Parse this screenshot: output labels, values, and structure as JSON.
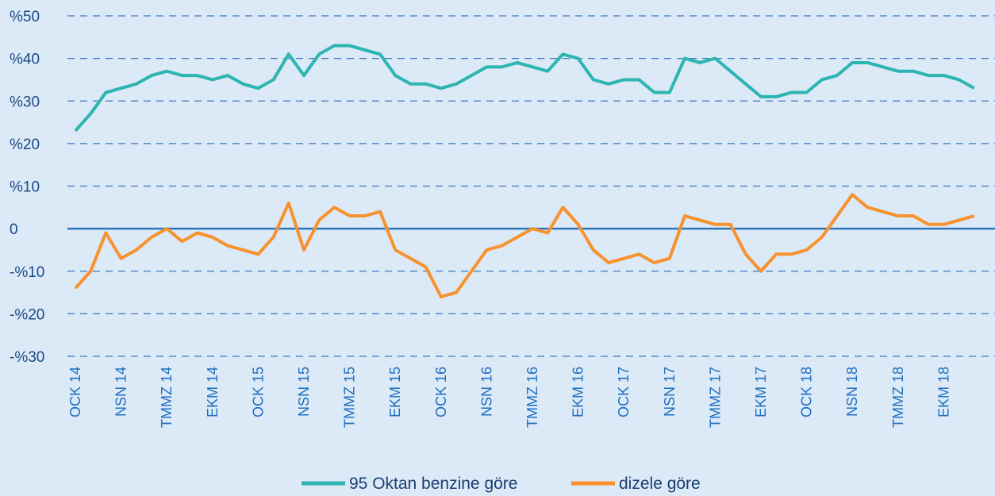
{
  "chart_data": {
    "type": "line",
    "categories": [
      "OCK 14",
      null,
      null,
      "NSN 14",
      null,
      null,
      "TMMZ 14",
      null,
      null,
      "EKM 14",
      null,
      null,
      "OCK 15",
      null,
      null,
      "NSN 15",
      null,
      null,
      "TMMZ 15",
      null,
      null,
      "EKM 15",
      null,
      null,
      "OCK 16",
      null,
      null,
      "NSN 16",
      null,
      null,
      "TMMZ 16",
      null,
      null,
      "EKM 16",
      null,
      null,
      "OCK 17",
      null,
      null,
      "NSN 17",
      null,
      null,
      "TMMZ 17",
      null,
      null,
      "EKM 17",
      null,
      null,
      "OCK 18",
      null,
      null,
      "NSN 18",
      null,
      null,
      "TMMZ 18",
      null,
      null,
      "EKM 18",
      null,
      null
    ],
    "series": [
      {
        "name": "95 Oktan benzine göre",
        "color": "#2cb5b1",
        "values": [
          23,
          27,
          32,
          33,
          34,
          36,
          37,
          36,
          36,
          35,
          36,
          34,
          33,
          35,
          41,
          36,
          41,
          43,
          43,
          42,
          41,
          36,
          34,
          34,
          33,
          34,
          36,
          38,
          38,
          39,
          38,
          37,
          41,
          40,
          35,
          34,
          35,
          35,
          32,
          32,
          40,
          39,
          40,
          37,
          34,
          31,
          31,
          32,
          32,
          35,
          36,
          39,
          39,
          38,
          37,
          37,
          36,
          36,
          35,
          33
        ]
      },
      {
        "name": "dizele göre",
        "color": "#f7922e",
        "values": [
          -14,
          -10,
          -1,
          -7,
          -5,
          -2,
          0,
          -3,
          -1,
          -2,
          -4,
          -5,
          -6,
          -2,
          6,
          -5,
          2,
          5,
          3,
          3,
          4,
          -5,
          -7,
          -9,
          -16,
          -15,
          -10,
          -5,
          -4,
          -2,
          0,
          -1,
          5,
          1,
          -5,
          -8,
          -7,
          -6,
          -8,
          -7,
          3,
          2,
          1,
          1,
          -6,
          -10,
          -6,
          -6,
          -5,
          -2,
          3,
          8,
          5,
          4,
          3,
          3,
          1,
          1,
          2,
          3
        ]
      }
    ],
    "ylim": [
      -30,
      50
    ],
    "yticks": [
      {
        "value": -30,
        "label": "-%30"
      },
      {
        "value": -20,
        "label": "-%20"
      },
      {
        "value": -10,
        "label": "-%10"
      },
      0,
      {
        "value": 10,
        "label": "%10"
      },
      {
        "value": 20,
        "label": "%20"
      },
      {
        "value": 30,
        "label": "%30"
      },
      {
        "value": 40,
        "label": "%40"
      },
      {
        "value": 50,
        "label": "%50"
      }
    ],
    "grid": true
  }
}
